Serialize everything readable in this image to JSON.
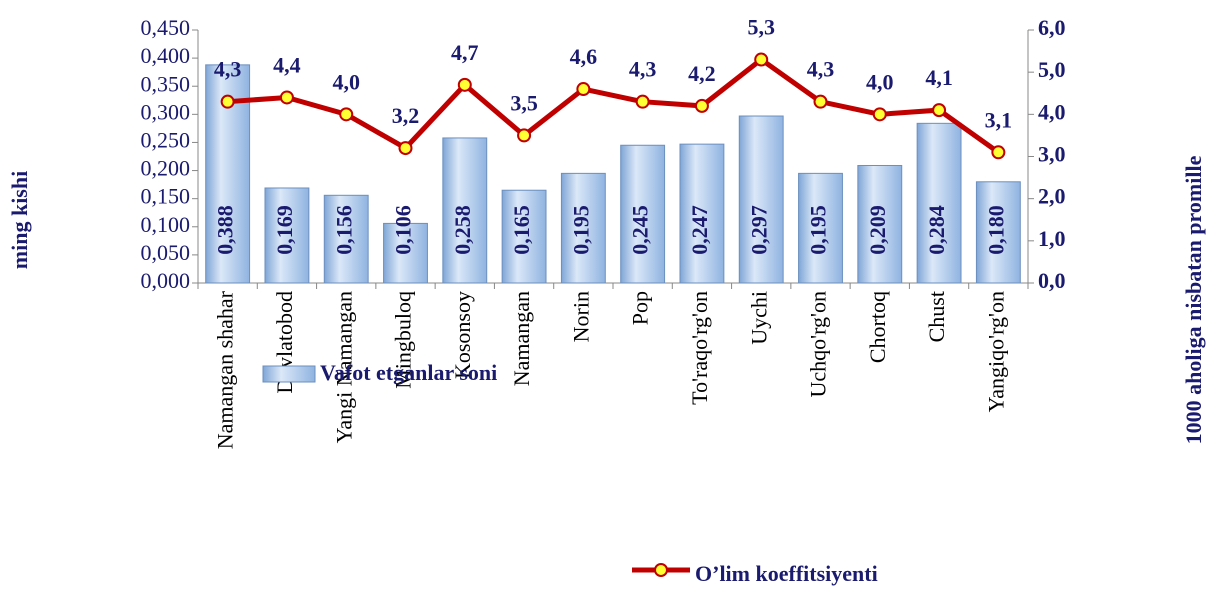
{
  "chart_data": {
    "type": "bar",
    "categories": [
      "Namangan shahar",
      "Davlatobod",
      "Yangi Namangan",
      "Mingbuloq",
      "Kosonsoy",
      "Namangan",
      "Norin",
      "Pop",
      "To'raqo'rg'on",
      "Uychi",
      "Uchqo'rg'on",
      "Chortoq",
      "Chust",
      "Yangiqo'rg'on"
    ],
    "series": [
      {
        "name": "Vafot etganlar soni",
        "type": "bar",
        "color": "#a9c8ee",
        "values": [
          0.388,
          0.169,
          0.156,
          0.106,
          0.258,
          0.165,
          0.195,
          0.245,
          0.247,
          0.297,
          0.195,
          0.209,
          0.284,
          0.18
        ],
        "value_labels": [
          "0,388",
          "0,169",
          "0,156",
          "0,106",
          "0,258",
          "0,165",
          "0,195",
          "0,245",
          "0,247",
          "0,297",
          "0,195",
          "0,209",
          "0,284",
          "0,180"
        ]
      },
      {
        "name": "O’lim koeffitsiyenti",
        "type": "line",
        "axis": "y2",
        "color": "#c00000",
        "marker_color": "#ffff33",
        "values": [
          4.3,
          4.4,
          4.0,
          3.2,
          4.7,
          3.5,
          4.6,
          4.3,
          4.2,
          5.3,
          4.3,
          4.0,
          4.1,
          3.1
        ],
        "value_labels": [
          "4,3",
          "4,4",
          "4,0",
          "3,2",
          "4,7",
          "3,5",
          "4,6",
          "4,3",
          "4,2",
          "5,3",
          "4,3",
          "4,0",
          "4,1",
          "3,1"
        ]
      }
    ],
    "y_label": "ming kishi",
    "y2_label": "1000 aholiga nisbatan promille",
    "ylim": [
      0,
      0.45
    ],
    "yticks": [
      {
        "value": 0,
        "label": "0,000"
      },
      {
        "value": 0.05,
        "label": "0,050"
      },
      {
        "value": 0.1,
        "label": "0,100"
      },
      {
        "value": 0.15,
        "label": "0,150"
      },
      {
        "value": 0.2,
        "label": "0,200"
      },
      {
        "value": 0.25,
        "label": "0,250"
      },
      {
        "value": 0.3,
        "label": "0,300"
      },
      {
        "value": 0.35,
        "label": "0,350"
      },
      {
        "value": 0.4,
        "label": "0,400"
      },
      {
        "value": 0.45,
        "label": "0,450"
      }
    ],
    "y2lim": [
      0,
      6
    ],
    "y2ticks": [
      {
        "value": 0,
        "label": "0,0"
      },
      {
        "value": 1,
        "label": "1,0"
      },
      {
        "value": 2,
        "label": "2,0"
      },
      {
        "value": 3,
        "label": "3,0"
      },
      {
        "value": 4,
        "label": "4,0"
      },
      {
        "value": 5,
        "label": "5,0"
      },
      {
        "value": 6,
        "label": "6,0"
      }
    ],
    "legend": "bottom"
  }
}
